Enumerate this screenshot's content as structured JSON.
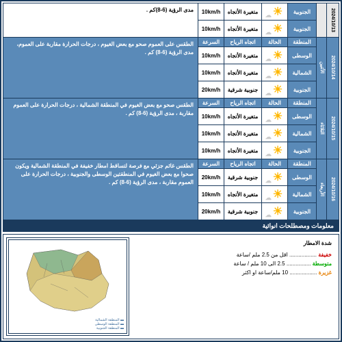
{
  "headers": {
    "region": "المنطقة",
    "condition": "الحالة",
    "wind_dir": "اتجاه الرياح",
    "speed": "السرعة"
  },
  "regions": {
    "central": "الوسطى",
    "northern": "الشمالية",
    "southern": "الجنوبية"
  },
  "wind": {
    "variable": "متغيرة الأتجاه",
    "se": "جنوبية شرقية"
  },
  "days": [
    {
      "date": "2024/10/13",
      "day": "",
      "rows": [
        {
          "region_key": "southern",
          "dir": "variable",
          "speed": "10km/h"
        },
        {
          "region_key": "southern",
          "dir": "variable",
          "speed": "10km/h"
        }
      ],
      "desc": "مدى الرؤية (6-8)كم .",
      "partial": true
    },
    {
      "date": "2024/10/14",
      "day": "الأثنين",
      "rows": [
        {
          "region_key": "central",
          "dir": "variable",
          "speed": "10km/h"
        },
        {
          "region_key": "northern",
          "dir": "variable",
          "speed": "10km/h"
        },
        {
          "region_key": "southern",
          "dir": "se",
          "speed": "20km/h"
        }
      ],
      "desc": "الطقس على العموم  صحو مع بعض الغيوم ، درجات الحرارة مقاربة على العموم، مدى الرؤية (6-8) كم ."
    },
    {
      "date": "2024/10/15",
      "day": "الثلاثاء",
      "rows": [
        {
          "region_key": "central",
          "dir": "variable",
          "speed": "10km/h"
        },
        {
          "region_key": "northern",
          "dir": "variable",
          "speed": "10km/h"
        },
        {
          "region_key": "southern",
          "dir": "variable",
          "speed": "10km/h"
        }
      ],
      "desc": "الطقس صحو مع بعض الغيوم في المنطقة الشمالية ، درجات الحرارة على العموم مقاربة ، مدى الرؤية (6-8) كم ."
    },
    {
      "date": "2024/10/16",
      "day": "الأربعاء",
      "rows": [
        {
          "region_key": "central",
          "dir": "se",
          "speed": "20km/h"
        },
        {
          "region_key": "northern",
          "dir": "variable",
          "speed": "10km/h"
        },
        {
          "region_key": "southern",
          "dir": "se",
          "speed": "20km/h"
        }
      ],
      "desc": "الطقس غائم جزئي مع فرصة لتساقط امطار خفيفة في المنطقة الشمالية ويكون صحوا مع بعض الغيوم في المنطقتين الوسطى والجنوبية ، درجات الحرارة على العموم مقاربة ، مدى الرؤية (6-8) كم ."
    }
  ],
  "section_title": "معلومات ومصطلحات انوائية",
  "rain": {
    "title": "شدة الامطار",
    "light": {
      "label": "خفيفة",
      "dots": "..................",
      "val": "اقل من 2.5 ملم /ساعة"
    },
    "moderate": {
      "label": "متوسطة",
      "dots": "................",
      "val": "2.5 الى 10 ملم / ساعة"
    },
    "heavy": {
      "label": "غزيرة",
      "dots": "..................",
      "val": "10 ملم/ساعة او اكثر"
    }
  },
  "colors": {
    "header_bg": "#5a8ab8",
    "border": "#1a3a5c"
  }
}
